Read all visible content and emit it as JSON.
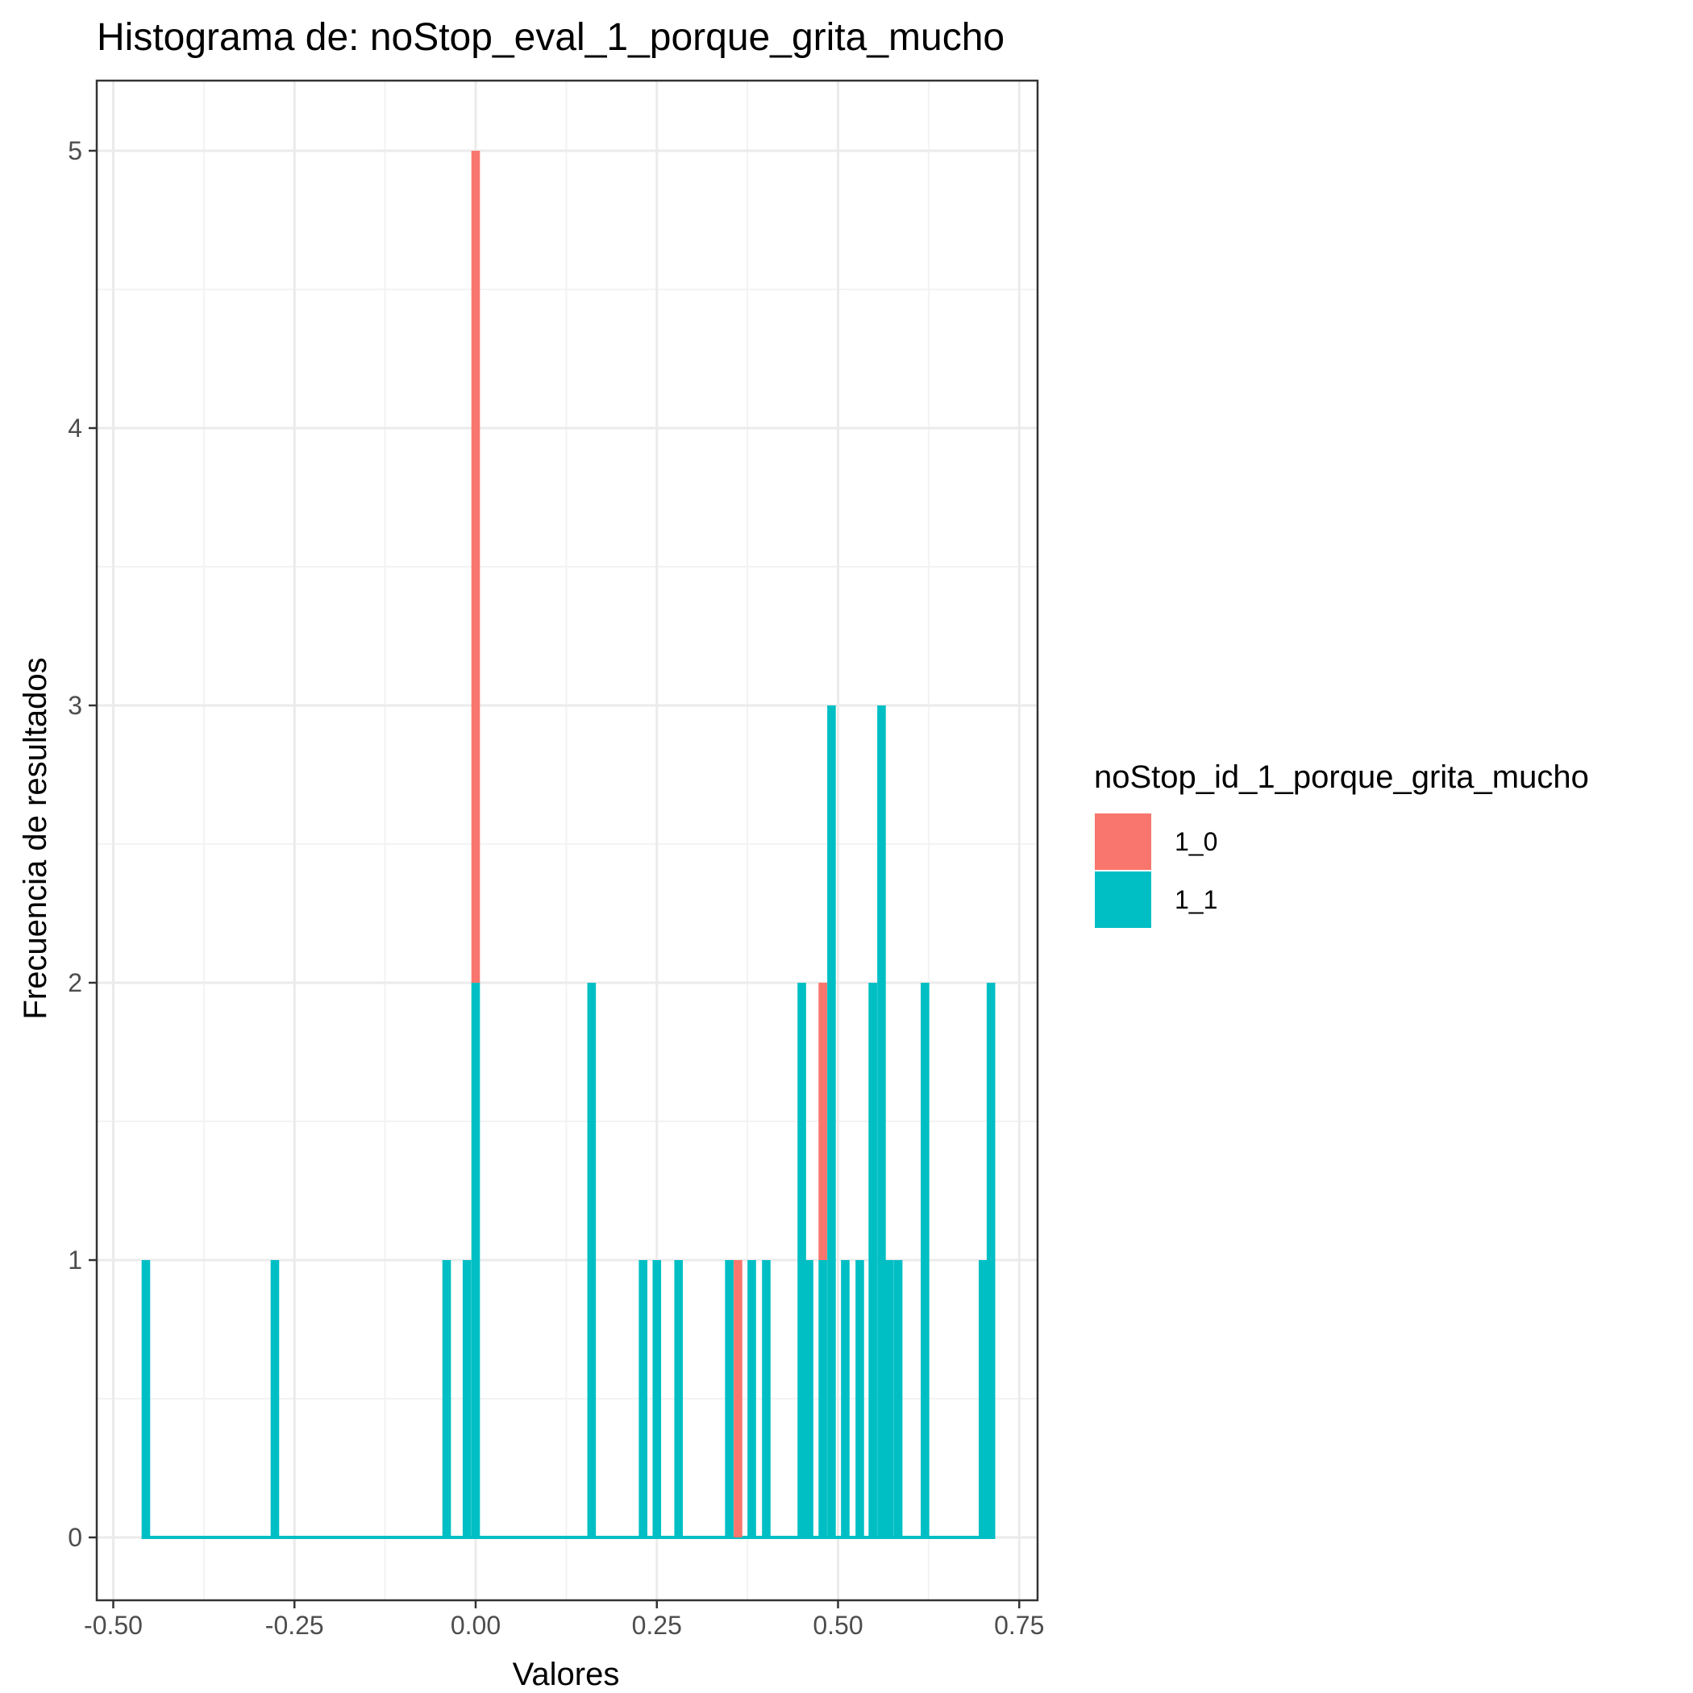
{
  "chart_data": {
    "type": "bar",
    "title": "Histograma de: noStop_eval_1_porque_grita_mucho",
    "xlabel": "Valores",
    "ylabel": "Frecuencia de resultados",
    "xlim": [
      -0.5,
      0.75
    ],
    "ylim": [
      0,
      5
    ],
    "x_ticks": [
      "-0.50",
      "-0.25",
      "0.00",
      "0.25",
      "0.50",
      "0.75"
    ],
    "x_tick_values": [
      -0.5,
      -0.25,
      0,
      0.25,
      0.5,
      0.75
    ],
    "y_ticks": [
      "0",
      "1",
      "2",
      "3",
      "4",
      "5"
    ],
    "y_tick_values": [
      0,
      1,
      2,
      3,
      4,
      5
    ],
    "grid": true,
    "stacked": true,
    "bin_width": 0.0118,
    "legend": {
      "title": "noStop_id_1_porque_grita_mucho",
      "placement": "right"
    },
    "series": [
      {
        "name": "1_0",
        "color": "#F8766D",
        "bins": [
          {
            "x": 0.0,
            "count": 3
          },
          {
            "x": 0.362,
            "count": 1
          },
          {
            "x": 0.479,
            "count": 1
          }
        ]
      },
      {
        "name": "1_1",
        "color": "#00BFC4",
        "bins": [
          {
            "x": -0.455,
            "count": 1
          },
          {
            "x": -0.277,
            "count": 1
          },
          {
            "x": -0.04,
            "count": 1
          },
          {
            "x": -0.012,
            "count": 1
          },
          {
            "x": 0.0,
            "count": 2
          },
          {
            "x": 0.16,
            "count": 2
          },
          {
            "x": 0.231,
            "count": 1
          },
          {
            "x": 0.25,
            "count": 1
          },
          {
            "x": 0.28,
            "count": 1
          },
          {
            "x": 0.35,
            "count": 1
          },
          {
            "x": 0.381,
            "count": 1
          },
          {
            "x": 0.401,
            "count": 1
          },
          {
            "x": 0.45,
            "count": 2
          },
          {
            "x": 0.46,
            "count": 1
          },
          {
            "x": 0.479,
            "count": 1
          },
          {
            "x": 0.491,
            "count": 3
          },
          {
            "x": 0.51,
            "count": 1
          },
          {
            "x": 0.53,
            "count": 1
          },
          {
            "x": 0.548,
            "count": 2
          },
          {
            "x": 0.56,
            "count": 3
          },
          {
            "x": 0.571,
            "count": 1
          },
          {
            "x": 0.583,
            "count": 1
          },
          {
            "x": 0.62,
            "count": 2
          },
          {
            "x": 0.7,
            "count": 1
          },
          {
            "x": 0.711,
            "count": 2
          }
        ]
      }
    ]
  }
}
